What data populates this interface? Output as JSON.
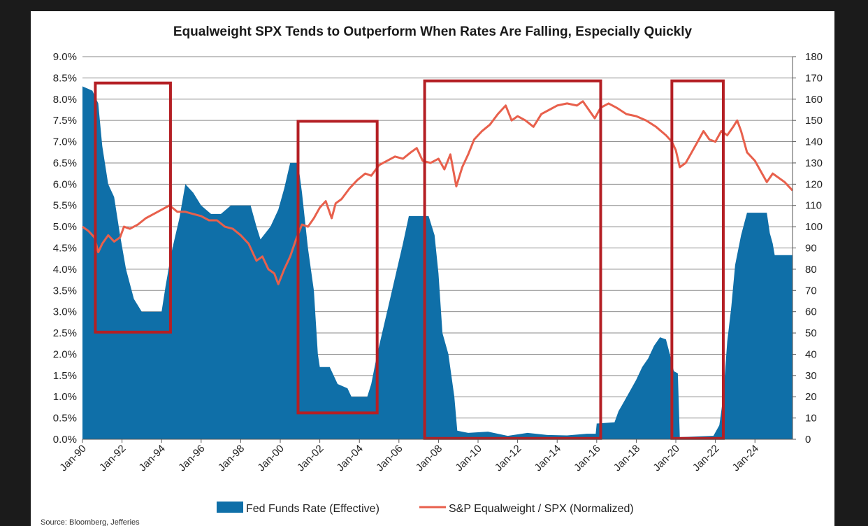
{
  "chart_data": {
    "type": "area",
    "title": "Equalweight SPX Tends to Outperform When Rates Are Falling, Especially Quickly",
    "source": "Source: Bloomberg, Jefferies",
    "x_tick_labels": [
      "Jan-90",
      "Jan-92",
      "Jan-94",
      "Jan-96",
      "Jan-98",
      "Jan-00",
      "Jan-02",
      "Jan-04",
      "Jan-06",
      "Jan-08",
      "Jan-10",
      "Jan-12",
      "Jan-14",
      "Jan-16",
      "Jan-18",
      "Jan-20",
      "Jan-22",
      "Jan-24"
    ],
    "x_range": [
      1990.0,
      2025.9
    ],
    "y_left": {
      "ticks": [
        "0.0%",
        "0.5%",
        "1.0%",
        "1.5%",
        "2.0%",
        "2.5%",
        "3.0%",
        "3.5%",
        "4.0%",
        "4.5%",
        "5.0%",
        "5.5%",
        "6.0%",
        "6.5%",
        "7.0%",
        "7.5%",
        "8.0%",
        "8.5%",
        "9.0%"
      ],
      "range": [
        0,
        9
      ]
    },
    "y_right": {
      "ticks": [
        "0",
        "10",
        "20",
        "30",
        "40",
        "50",
        "60",
        "70",
        "80",
        "90",
        "100",
        "110",
        "120",
        "130",
        "140",
        "150",
        "160",
        "170",
        "180"
      ],
      "range": [
        0,
        180
      ]
    },
    "grid": true,
    "legend_position": "bottom",
    "series": [
      {
        "name": "Fed Funds Rate (Effective)",
        "kind": "area",
        "axis": "left",
        "color": "#0F6FA8",
        "points": [
          [
            1990.0,
            8.3
          ],
          [
            1990.5,
            8.2
          ],
          [
            1990.8,
            7.9
          ],
          [
            1991.0,
            6.9
          ],
          [
            1991.3,
            6.0
          ],
          [
            1991.6,
            5.7
          ],
          [
            1991.9,
            4.8
          ],
          [
            1992.2,
            4.0
          ],
          [
            1992.6,
            3.3
          ],
          [
            1993.0,
            3.0
          ],
          [
            1993.5,
            3.0
          ],
          [
            1994.0,
            3.0
          ],
          [
            1994.2,
            3.6
          ],
          [
            1994.5,
            4.4
          ],
          [
            1994.9,
            5.2
          ],
          [
            1995.2,
            6.0
          ],
          [
            1995.6,
            5.8
          ],
          [
            1996.0,
            5.5
          ],
          [
            1996.5,
            5.3
          ],
          [
            1997.0,
            5.3
          ],
          [
            1997.5,
            5.5
          ],
          [
            1998.0,
            5.5
          ],
          [
            1998.5,
            5.5
          ],
          [
            1998.8,
            5.0
          ],
          [
            1999.0,
            4.7
          ],
          [
            1999.5,
            5.0
          ],
          [
            1999.9,
            5.4
          ],
          [
            2000.2,
            5.9
          ],
          [
            2000.5,
            6.5
          ],
          [
            2000.9,
            6.5
          ],
          [
            2001.1,
            5.8
          ],
          [
            2001.4,
            4.5
          ],
          [
            2001.7,
            3.5
          ],
          [
            2001.9,
            2.0
          ],
          [
            2002.0,
            1.7
          ],
          [
            2002.5,
            1.7
          ],
          [
            2002.9,
            1.3
          ],
          [
            2003.4,
            1.2
          ],
          [
            2003.6,
            1.0
          ],
          [
            2004.0,
            1.0
          ],
          [
            2004.4,
            1.0
          ],
          [
            2004.6,
            1.3
          ],
          [
            2004.9,
            2.0
          ],
          [
            2005.2,
            2.6
          ],
          [
            2005.5,
            3.2
          ],
          [
            2005.9,
            4.0
          ],
          [
            2006.2,
            4.6
          ],
          [
            2006.5,
            5.25
          ],
          [
            2007.0,
            5.25
          ],
          [
            2007.5,
            5.25
          ],
          [
            2007.8,
            4.8
          ],
          [
            2008.0,
            3.9
          ],
          [
            2008.2,
            2.5
          ],
          [
            2008.5,
            2.0
          ],
          [
            2008.8,
            1.0
          ],
          [
            2008.95,
            0.2
          ],
          [
            2009.5,
            0.15
          ],
          [
            2010.5,
            0.18
          ],
          [
            2011.5,
            0.08
          ],
          [
            2012.5,
            0.15
          ],
          [
            2013.5,
            0.1
          ],
          [
            2014.5,
            0.09
          ],
          [
            2015.5,
            0.13
          ],
          [
            2015.95,
            0.13
          ],
          [
            2016.0,
            0.37
          ],
          [
            2016.9,
            0.4
          ],
          [
            2017.1,
            0.66
          ],
          [
            2017.4,
            0.9
          ],
          [
            2017.7,
            1.15
          ],
          [
            2018.0,
            1.4
          ],
          [
            2018.3,
            1.7
          ],
          [
            2018.6,
            1.9
          ],
          [
            2018.9,
            2.2
          ],
          [
            2019.2,
            2.4
          ],
          [
            2019.5,
            2.35
          ],
          [
            2019.7,
            2.0
          ],
          [
            2019.9,
            1.6
          ],
          [
            2020.1,
            1.55
          ],
          [
            2020.2,
            0.05
          ],
          [
            2021.9,
            0.08
          ],
          [
            2022.2,
            0.33
          ],
          [
            2022.4,
            1.0
          ],
          [
            2022.6,
            2.3
          ],
          [
            2022.8,
            3.1
          ],
          [
            2023.0,
            4.1
          ],
          [
            2023.3,
            4.8
          ],
          [
            2023.6,
            5.33
          ],
          [
            2024.6,
            5.33
          ],
          [
            2024.75,
            4.85
          ],
          [
            2024.9,
            4.6
          ],
          [
            2025.0,
            4.33
          ],
          [
            2025.9,
            4.33
          ]
        ]
      },
      {
        "name": "S&P Equalweight / SPX (Normalized)",
        "kind": "line",
        "axis": "right",
        "color": "#E8604C",
        "points": [
          [
            1990.0,
            100
          ],
          [
            1990.3,
            98
          ],
          [
            1990.6,
            95
          ],
          [
            1990.8,
            88
          ],
          [
            1991.0,
            92
          ],
          [
            1991.3,
            96
          ],
          [
            1991.6,
            93
          ],
          [
            1991.9,
            95
          ],
          [
            1992.1,
            100
          ],
          [
            1992.4,
            99
          ],
          [
            1992.8,
            101
          ],
          [
            1993.2,
            104
          ],
          [
            1993.6,
            106
          ],
          [
            1994.0,
            108
          ],
          [
            1994.4,
            110
          ],
          [
            1994.8,
            107
          ],
          [
            1995.2,
            107
          ],
          [
            1995.6,
            106
          ],
          [
            1996.0,
            105
          ],
          [
            1996.4,
            103
          ],
          [
            1996.8,
            103
          ],
          [
            1997.2,
            100
          ],
          [
            1997.6,
            99
          ],
          [
            1998.0,
            96
          ],
          [
            1998.4,
            92
          ],
          [
            1998.8,
            84
          ],
          [
            1999.1,
            86
          ],
          [
            1999.4,
            80
          ],
          [
            1999.7,
            78
          ],
          [
            1999.9,
            73
          ],
          [
            2000.2,
            80
          ],
          [
            2000.5,
            86
          ],
          [
            2000.8,
            94
          ],
          [
            2001.1,
            101
          ],
          [
            2001.4,
            100
          ],
          [
            2001.7,
            104
          ],
          [
            2002.0,
            109
          ],
          [
            2002.3,
            112
          ],
          [
            2002.6,
            104
          ],
          [
            2002.8,
            111
          ],
          [
            2003.1,
            113
          ],
          [
            2003.5,
            118
          ],
          [
            2003.9,
            122
          ],
          [
            2004.3,
            125
          ],
          [
            2004.6,
            124
          ],
          [
            2005.0,
            129
          ],
          [
            2005.4,
            131
          ],
          [
            2005.8,
            133
          ],
          [
            2006.2,
            132
          ],
          [
            2006.6,
            135
          ],
          [
            2006.9,
            137
          ],
          [
            2007.2,
            131
          ],
          [
            2007.6,
            130
          ],
          [
            2008.0,
            132
          ],
          [
            2008.3,
            127
          ],
          [
            2008.6,
            134
          ],
          [
            2008.9,
            119
          ],
          [
            2009.2,
            128
          ],
          [
            2009.5,
            134
          ],
          [
            2009.8,
            141
          ],
          [
            2010.2,
            145
          ],
          [
            2010.6,
            148
          ],
          [
            2011.0,
            153
          ],
          [
            2011.4,
            157
          ],
          [
            2011.7,
            150
          ],
          [
            2012.0,
            152
          ],
          [
            2012.4,
            150
          ],
          [
            2012.8,
            147
          ],
          [
            2013.2,
            153
          ],
          [
            2013.6,
            155
          ],
          [
            2014.0,
            157
          ],
          [
            2014.5,
            158
          ],
          [
            2015.0,
            157
          ],
          [
            2015.3,
            159
          ],
          [
            2015.6,
            155
          ],
          [
            2015.9,
            151
          ],
          [
            2016.2,
            156
          ],
          [
            2016.6,
            158
          ],
          [
            2017.0,
            156
          ],
          [
            2017.5,
            153
          ],
          [
            2018.0,
            152
          ],
          [
            2018.5,
            150
          ],
          [
            2019.0,
            147
          ],
          [
            2019.5,
            143
          ],
          [
            2019.8,
            140
          ],
          [
            2020.0,
            136
          ],
          [
            2020.2,
            128
          ],
          [
            2020.5,
            130
          ],
          [
            2020.8,
            135
          ],
          [
            2021.1,
            140
          ],
          [
            2021.4,
            145
          ],
          [
            2021.7,
            141
          ],
          [
            2022.0,
            140
          ],
          [
            2022.3,
            145
          ],
          [
            2022.6,
            143
          ],
          [
            2022.9,
            147
          ],
          [
            2023.1,
            150
          ],
          [
            2023.3,
            145
          ],
          [
            2023.6,
            135
          ],
          [
            2024.0,
            131
          ],
          [
            2024.3,
            126
          ],
          [
            2024.6,
            121
          ],
          [
            2024.9,
            125
          ],
          [
            2025.2,
            123
          ],
          [
            2025.5,
            121
          ],
          [
            2025.9,
            117
          ]
        ]
      }
    ],
    "highlight_boxes": [
      {
        "x0": 1990.65,
        "x1": 1994.45,
        "y0_pct": 2.52,
        "y1_pct": 8.38
      },
      {
        "x0": 2000.9,
        "x1": 2004.9,
        "y0_pct": 0.62,
        "y1_pct": 7.48
      },
      {
        "x0": 2007.3,
        "x1": 2016.2,
        "y0_pct": 0.02,
        "y1_pct": 8.43
      },
      {
        "x0": 2019.8,
        "x1": 2022.4,
        "y0_pct": 0.02,
        "y1_pct": 8.43
      }
    ],
    "highlight_color": "#B41F24"
  }
}
